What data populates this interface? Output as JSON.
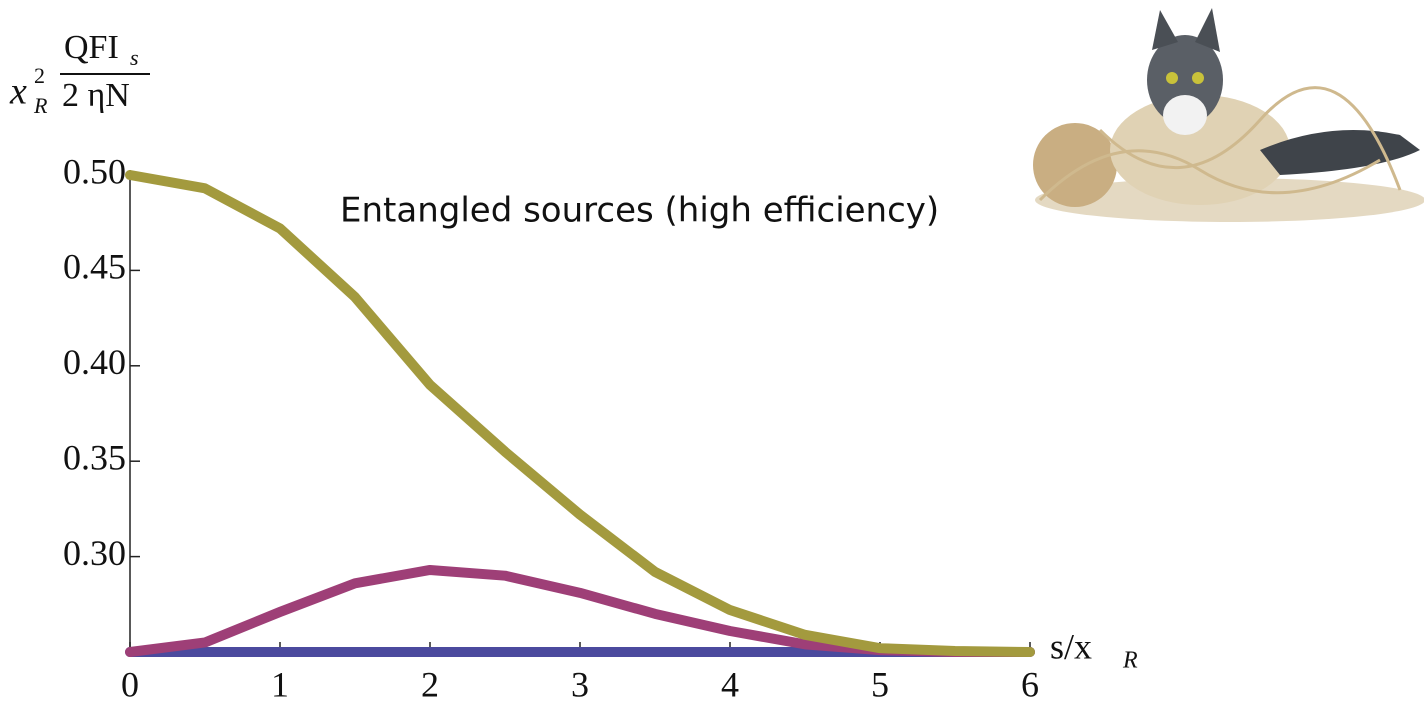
{
  "chart_data": {
    "type": "line",
    "annotation": "Entangled sources (high efficiency)",
    "y_label": {
      "base": "x",
      "sup": "2",
      "sub": "R",
      "numerator": "QFI",
      "numerator_sub": "s",
      "denominator": "2 ηN"
    },
    "x_label": {
      "text": "s/x",
      "sub": "R"
    },
    "x": [
      0,
      0.5,
      1,
      1.5,
      2,
      2.5,
      3,
      3.5,
      4,
      4.5,
      5,
      5.5,
      6
    ],
    "series": [
      {
        "color": "#4b4a9e",
        "values": [
          0.25,
          0.25,
          0.25,
          0.25,
          0.25,
          0.25,
          0.25,
          0.25,
          0.25,
          0.25,
          0.25,
          0.25,
          0.25
        ]
      },
      {
        "color": "#9e3f77",
        "values": [
          0.25,
          0.255,
          0.271,
          0.286,
          0.293,
          0.29,
          0.281,
          0.27,
          0.261,
          0.254,
          0.251,
          0.25,
          0.25
        ]
      },
      {
        "color": "#a39a3e",
        "values": [
          0.5,
          0.493,
          0.472,
          0.436,
          0.39,
          0.355,
          0.322,
          0.292,
          0.272,
          0.259,
          0.252,
          0.2505,
          0.25
        ]
      }
    ],
    "xlim": [
      0,
      6
    ],
    "ylim": [
      0.25,
      0.5
    ],
    "xticks": [
      0,
      1,
      2,
      3,
      4,
      5,
      6
    ],
    "yticks": [
      {
        "value": 0.3,
        "label": "0.30"
      },
      {
        "value": 0.35,
        "label": "0.35"
      },
      {
        "value": 0.4,
        "label": "0.40"
      },
      {
        "value": 0.45,
        "label": "0.45"
      },
      {
        "value": 0.5,
        "label": "0.50"
      }
    ]
  }
}
